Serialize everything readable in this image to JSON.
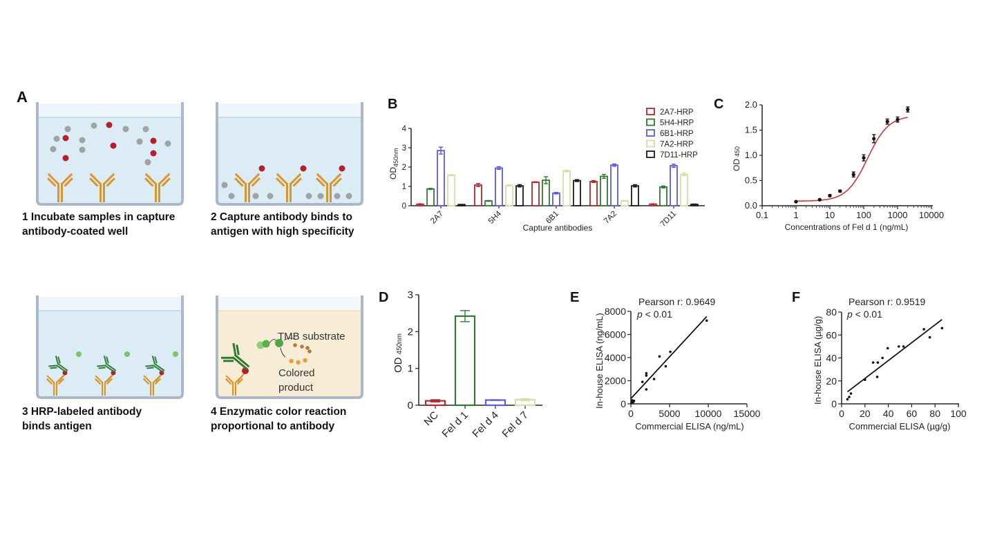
{
  "panel_labels": {
    "a": "A",
    "b": "B",
    "c": "C",
    "d": "D",
    "e": "E",
    "f": "F"
  },
  "diagram": {
    "steps": [
      {
        "line1": "1 Incubate samples in capture",
        "line2": "antibody-coated well"
      },
      {
        "line1": "2 Capture antibody binds to",
        "line2": "antigen with high specificity"
      },
      {
        "line1": "3 HRP-labeled antibody",
        "line2": "binds antigen"
      },
      {
        "line1": "4 Enzymatic color reaction",
        "line2": "proportional to antibody"
      }
    ],
    "tmb_label": "TMB substrate",
    "product_label_1": "Colored",
    "product_label_2": "product",
    "colors": {
      "buffer": "#dcecf5",
      "substrate_buffer": "#f7ecd6",
      "well_wall": "#aab8c8",
      "capture_antibody": "#d9962b",
      "detection_antibody": "#2e7d32",
      "antigen": "#b3202e",
      "other_protein": "#9ea3a8",
      "hrp": "#7cc36b",
      "product": "#e89a2c"
    }
  },
  "chart_data": [
    {
      "id": "B",
      "type": "bar",
      "title": "",
      "xlabel": "Capture antibodies",
      "ylabel": "OD",
      "ylabel_sub": "450nm",
      "ylim": [
        0,
        4
      ],
      "yticks": [
        "0",
        "1",
        "2",
        "3",
        "4"
      ],
      "categories": [
        "2A7",
        "5H4",
        "6B1",
        "7A2",
        "7D11"
      ],
      "legend_position": "top-right",
      "series": [
        {
          "name": "2A7-HRP",
          "color": "#b5262e",
          "values": [
            0.08,
            1.07,
            1.22,
            1.25,
            0.08
          ],
          "errors": [
            0.02,
            0.08,
            0.02,
            0.05,
            0.02
          ]
        },
        {
          "name": "5H4-HRP",
          "color": "#2f7a2f",
          "values": [
            0.87,
            0.25,
            1.32,
            1.52,
            0.97
          ],
          "errors": [
            0.03,
            0.02,
            0.18,
            0.1,
            0.05
          ]
        },
        {
          "name": "6B1-HRP",
          "color": "#5a5ae6",
          "values": [
            2.85,
            1.95,
            0.65,
            2.1,
            2.07
          ],
          "errors": [
            0.18,
            0.07,
            0.04,
            0.06,
            0.08
          ]
        },
        {
          "name": "7A2-HRP",
          "color": "#d4dfa8",
          "values": [
            1.58,
            1.05,
            1.8,
            0.25,
            1.62
          ],
          "errors": [
            0.03,
            0.03,
            0.05,
            0.02,
            0.07
          ]
        },
        {
          "name": "7D11-HRP",
          "color": "#1a1a1a",
          "values": [
            0.06,
            1.03,
            1.3,
            1.03,
            0.07
          ],
          "errors": [
            0.01,
            0.06,
            0.05,
            0.06,
            0.02
          ]
        }
      ]
    },
    {
      "id": "C",
      "type": "scatter",
      "title": "",
      "xlabel": "Concentrations of Fel d 1 (ng/mL)",
      "ylabel": "OD",
      "ylabel_sub": "450",
      "xscale": "log",
      "xlim": [
        0.1,
        10000
      ],
      "ylim": [
        0,
        2.0
      ],
      "xticks": [
        "0.1",
        "1",
        "10",
        "100",
        "1000",
        "10000"
      ],
      "yticks": [
        "0.0",
        "0.5",
        "1.0",
        "1.5",
        "2.0"
      ],
      "points": [
        {
          "x": 1,
          "y": 0.08,
          "err": 0.01
        },
        {
          "x": 5,
          "y": 0.12,
          "err": 0.01
        },
        {
          "x": 10,
          "y": 0.2,
          "err": 0.02
        },
        {
          "x": 20,
          "y": 0.29,
          "err": 0.02
        },
        {
          "x": 50,
          "y": 0.62,
          "err": 0.05
        },
        {
          "x": 100,
          "y": 0.95,
          "err": 0.06
        },
        {
          "x": 200,
          "y": 1.33,
          "err": 0.08
        },
        {
          "x": 500,
          "y": 1.67,
          "err": 0.05
        },
        {
          "x": 1000,
          "y": 1.71,
          "err": 0.05
        },
        {
          "x": 2000,
          "y": 1.91,
          "err": 0.05
        }
      ],
      "fit": {
        "model": "4PL",
        "bottom": 0.09,
        "top": 1.79,
        "ec50": 130,
        "hill": 1.4,
        "color": "#d8313a"
      }
    },
    {
      "id": "D",
      "type": "bar",
      "title": "",
      "xlabel": "",
      "ylabel": "OD",
      "ylabel_sub": "450nm",
      "ylim": [
        0,
        3
      ],
      "yticks": [
        "0",
        "1",
        "2",
        "3"
      ],
      "categories": [
        "NC",
        "Fel d 1",
        "Fel d 4",
        "Fel d 7"
      ],
      "values": [
        0.12,
        2.42,
        0.14,
        0.15
      ],
      "errors": [
        0.03,
        0.15,
        0.01,
        0.03
      ],
      "colors": [
        "#b5262e",
        "#2f7a2f",
        "#5a5ae6",
        "#d4dfa8"
      ]
    },
    {
      "id": "E",
      "type": "scatter",
      "title": "",
      "xlabel": "Commercial ELISA (ng/mL)",
      "ylabel": "In-house ELISA (ng/mL)",
      "xlim": [
        0,
        15000
      ],
      "ylim": [
        0,
        8000
      ],
      "xticks": [
        "0",
        "5000",
        "10000",
        "15000"
      ],
      "yticks": [
        "0",
        "2000",
        "4000",
        "6000",
        "8000"
      ],
      "annotation_r": "Pearson r: 0.9649",
      "annotation_p_italic": "p",
      "annotation_p_rest": " < 0.01",
      "points": [
        {
          "x": 100,
          "y": 100
        },
        {
          "x": 200,
          "y": 300
        },
        {
          "x": 300,
          "y": 150
        },
        {
          "x": 400,
          "y": 250
        },
        {
          "x": 1500,
          "y": 1900
        },
        {
          "x": 2000,
          "y": 1250
        },
        {
          "x": 2000,
          "y": 2450
        },
        {
          "x": 2000,
          "y": 2650
        },
        {
          "x": 3000,
          "y": 2150
        },
        {
          "x": 3700,
          "y": 4100
        },
        {
          "x": 4500,
          "y": 3250
        },
        {
          "x": 5100,
          "y": 4500
        },
        {
          "x": 9800,
          "y": 7200
        }
      ],
      "fit_line": {
        "x": [
          0,
          9800
        ],
        "y": [
          450,
          7550
        ]
      }
    },
    {
      "id": "F",
      "type": "scatter",
      "title": "",
      "xlabel": "Commercial ELISA (µg/g)",
      "ylabel": "In-house ELISA (µg/g)",
      "xlim": [
        0,
        100
      ],
      "ylim": [
        0,
        80
      ],
      "xticks": [
        "0",
        "20",
        "40",
        "60",
        "80",
        "100"
      ],
      "yticks": [
        "0",
        "20",
        "40",
        "60",
        "80"
      ],
      "annotation_r": "Pearson r: 0.9519",
      "annotation_p_italic": "p",
      "annotation_p_rest": " < 0.01",
      "points": [
        {
          "x": 5,
          "y": 4
        },
        {
          "x": 6.5,
          "y": 6
        },
        {
          "x": 8,
          "y": 9
        },
        {
          "x": 20,
          "y": 21
        },
        {
          "x": 27,
          "y": 36
        },
        {
          "x": 30.5,
          "y": 23.5
        },
        {
          "x": 31,
          "y": 36
        },
        {
          "x": 35,
          "y": 40
        },
        {
          "x": 39.5,
          "y": 48.5
        },
        {
          "x": 49,
          "y": 50
        },
        {
          "x": 53,
          "y": 50
        },
        {
          "x": 70.5,
          "y": 65
        },
        {
          "x": 75.5,
          "y": 58
        },
        {
          "x": 86,
          "y": 66
        }
      ],
      "fit_line": {
        "x": [
          5,
          86
        ],
        "y": [
          10.5,
          73.5
        ]
      }
    }
  ]
}
